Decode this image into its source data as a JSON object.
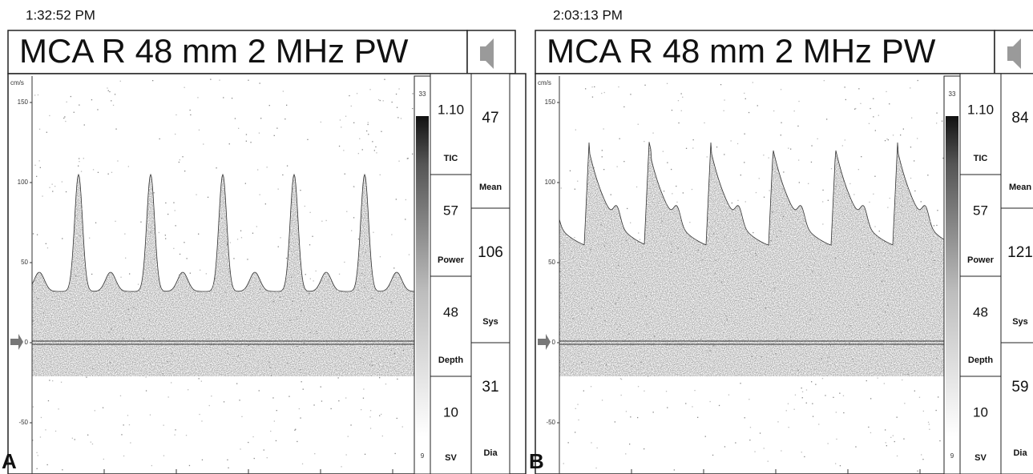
{
  "panels": [
    {
      "time": "1:32:52 PM",
      "letter": "A",
      "header": "MCA R 48 mm 2 MHz PW",
      "axis": {
        "unit": "cm/s",
        "ticks": [
          "150",
          "100",
          "50",
          "0",
          "-50"
        ]
      },
      "colorbar": {
        "top": "33",
        "bottom": "9"
      },
      "params": [
        {
          "value": "1.10",
          "label": "TIC"
        },
        {
          "value": "57",
          "label": "Power"
        },
        {
          "value": "48",
          "label": "Depth"
        },
        {
          "value": "10",
          "label": "SV"
        }
      ],
      "measurements": [
        {
          "value": "47",
          "label": "Mean"
        },
        {
          "value": "106",
          "label": "Sys"
        },
        {
          "value": "31",
          "label": "Dia"
        }
      ]
    },
    {
      "time": "2:03:13 PM",
      "letter": "B",
      "header": "MCA R 48 mm 2 MHz PW",
      "axis": {
        "unit": "cm/s",
        "ticks": [
          "150",
          "100",
          "50",
          "0",
          "-50"
        ]
      },
      "colorbar": {
        "top": "33",
        "bottom": "9"
      },
      "params": [
        {
          "value": "1.10",
          "label": "TIC"
        },
        {
          "value": "57",
          "label": "Power"
        },
        {
          "value": "48",
          "label": "Depth"
        },
        {
          "value": "10",
          "label": "SV"
        }
      ],
      "measurements": [
        {
          "value": "84",
          "label": "Mean"
        },
        {
          "value": "121",
          "label": "Sys"
        },
        {
          "value": "59",
          "label": "Dia"
        }
      ]
    }
  ]
}
